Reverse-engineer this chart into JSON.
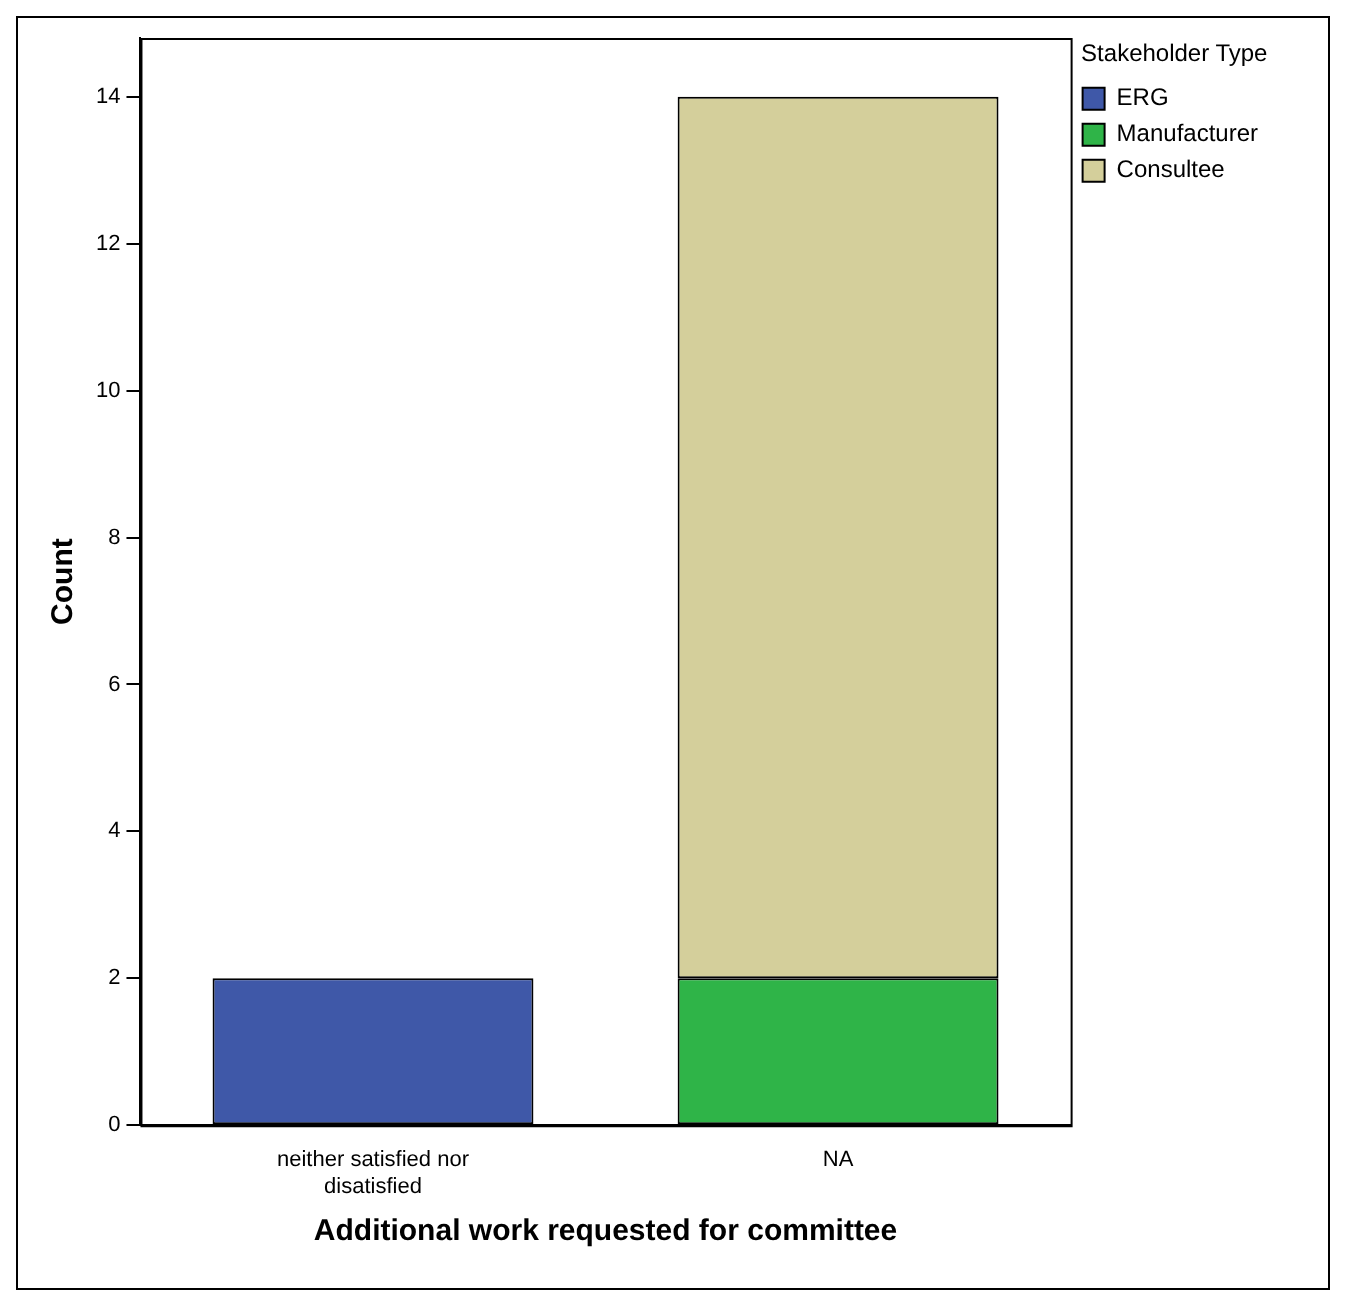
{
  "chart_data": {
    "type": "bar",
    "stacked": true,
    "xlabel": "Additional work requested for committee",
    "ylabel": "Count",
    "legend_title": "Stakeholder Type",
    "legend": "top right",
    "categories": [
      "neither satisfied nor disatisfied",
      "NA"
    ],
    "series": [
      {
        "name": "ERG",
        "color": "#3f58a8",
        "values": [
          2,
          0
        ]
      },
      {
        "name": "Manufacturer",
        "color": "#2fb448",
        "values": [
          0,
          2
        ]
      },
      {
        "name": "Consultee",
        "color": "#d4cf9b",
        "values": [
          0,
          12
        ]
      }
    ],
    "ylim": [
      0,
      14.8
    ],
    "yticks": [
      0,
      2,
      4,
      6,
      8,
      10,
      12,
      14
    ]
  }
}
